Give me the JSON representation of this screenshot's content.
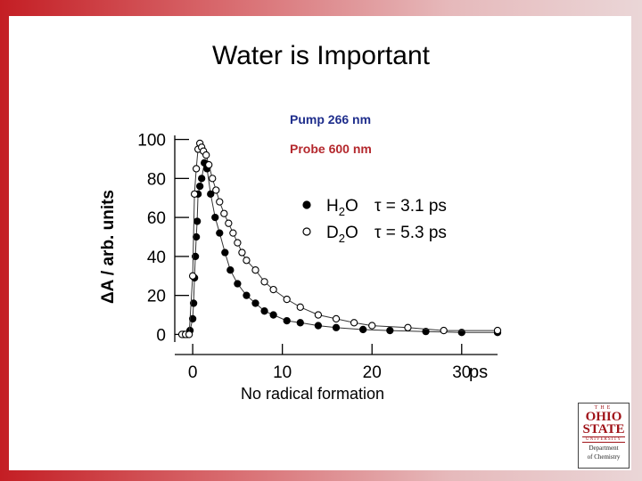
{
  "slide": {
    "title": "Water is Important",
    "pump_label": "Pump 266 nm",
    "probe_label": "Probe 600 nm",
    "annotation": "No radical formation",
    "x_unit": "ps",
    "colors": {
      "pump": "#1f2e8c",
      "probe": "#b4282d",
      "logo": "#a01319"
    }
  },
  "logo": {
    "the": "THE",
    "name_line1": "OHIO",
    "name_line2": "STATE",
    "university": "UNIVERSITY",
    "dept_line1": "Department",
    "dept_line2": "of Chemistry"
  },
  "chart_data": {
    "type": "scatter",
    "title": "",
    "xlabel": "",
    "ylabel": "ΔA / arb. units",
    "xlim": [
      -2,
      34
    ],
    "ylim": [
      -3,
      103
    ],
    "x_ticks": [
      0,
      10,
      20,
      30
    ],
    "y_ticks": [
      0,
      20,
      40,
      60,
      80,
      100
    ],
    "grid": false,
    "legend_position": "upper-right",
    "series": [
      {
        "name": "H2O",
        "tau": "τ = 3.1 ps",
        "marker": "filled-circle",
        "x": [
          -1.0,
          -0.6,
          -0.3,
          0.0,
          0.1,
          0.2,
          0.3,
          0.4,
          0.5,
          0.6,
          0.8,
          1.0,
          1.3,
          1.6,
          2.0,
          2.5,
          3.0,
          3.6,
          4.2,
          5.0,
          6.0,
          7.0,
          8.0,
          9.0,
          10.5,
          12.0,
          14.0,
          16.0,
          19.0,
          22.0,
          26.0,
          30.0,
          34.0
        ],
        "y": [
          0,
          0,
          2,
          8,
          16,
          29,
          40,
          50,
          58,
          72,
          76,
          80,
          88,
          85,
          72,
          60,
          52,
          42,
          33,
          26,
          20,
          16,
          12,
          10,
          7,
          6,
          4.5,
          3.5,
          2.5,
          2,
          1.5,
          1,
          1
        ]
      },
      {
        "name": "D2O",
        "tau": "τ = 5.3 ps",
        "marker": "open-circle",
        "x": [
          -1.2,
          -0.8,
          -0.4,
          0.0,
          0.2,
          0.4,
          0.6,
          0.8,
          1.0,
          1.2,
          1.5,
          1.8,
          2.2,
          2.6,
          3.0,
          3.5,
          4.0,
          4.5,
          5.0,
          5.5,
          6.0,
          7.0,
          8.0,
          9.0,
          10.5,
          12.0,
          14.0,
          16.0,
          18.0,
          20.0,
          24.0,
          28.0,
          34.0
        ],
        "y": [
          0,
          0,
          0,
          30,
          72,
          85,
          95,
          98,
          96,
          94,
          92,
          87,
          80,
          74,
          68,
          62,
          57,
          52,
          47,
          42,
          38,
          33,
          27,
          23,
          18,
          14,
          10,
          8,
          6,
          4.5,
          3.5,
          2,
          2
        ]
      }
    ]
  }
}
